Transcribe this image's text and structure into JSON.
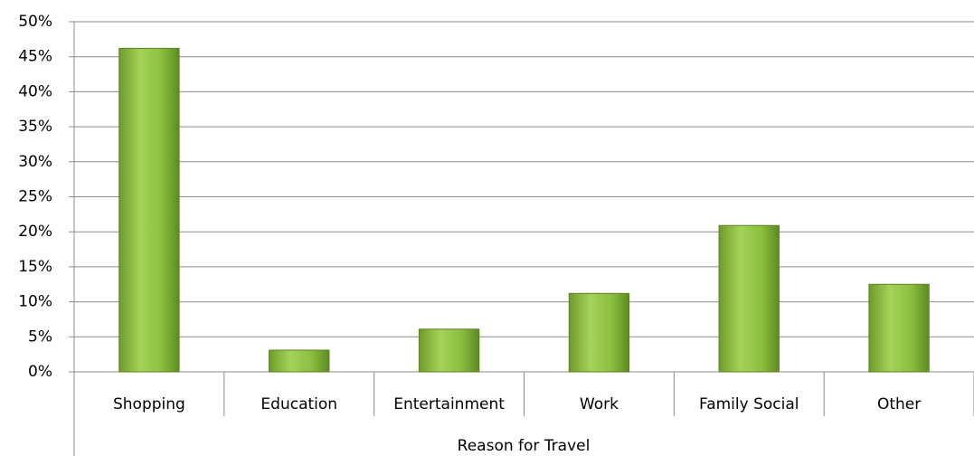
{
  "chart_data": {
    "type": "bar",
    "categories": [
      "Shopping",
      "Education",
      "Entertainment",
      "Work",
      "Family Social",
      "Other"
    ],
    "values": [
      46.2,
      3.1,
      6.1,
      11.2,
      20.9,
      12.5
    ],
    "color": "#8cbf3f",
    "x_label": "Reason for Travel",
    "ylim": [
      0,
      50
    ],
    "yticks": [
      {
        "value": 0,
        "label": "0%"
      },
      {
        "value": 5,
        "label": "5%"
      },
      {
        "value": 10,
        "label": "10%"
      },
      {
        "value": 15,
        "label": "15%"
      },
      {
        "value": 20,
        "label": "20%"
      },
      {
        "value": 25,
        "label": "25%"
      },
      {
        "value": 30,
        "label": "30%"
      },
      {
        "value": 35,
        "label": "35%"
      },
      {
        "value": 40,
        "label": "40%"
      },
      {
        "value": 45,
        "label": "45%"
      },
      {
        "value": 50,
        "label": "50%"
      }
    ],
    "grid": true
  }
}
